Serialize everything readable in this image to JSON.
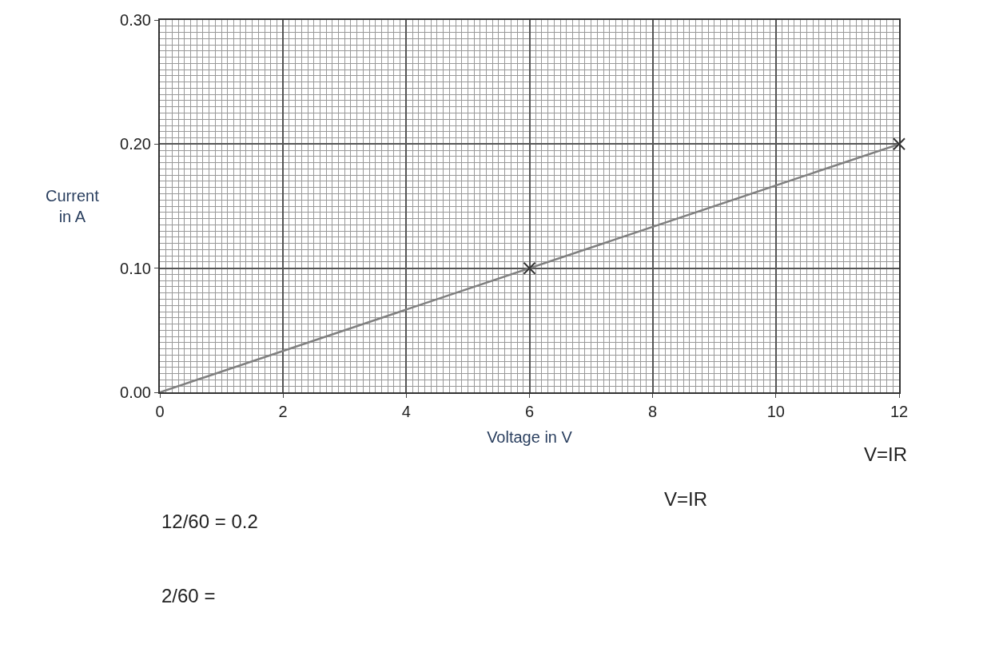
{
  "chart_data": {
    "type": "line",
    "xlabel": "Voltage in V",
    "ylabel": "Current\nin A",
    "xlim": [
      0,
      12
    ],
    "ylim": [
      0,
      0.3
    ],
    "xticks": [
      0,
      2,
      4,
      6,
      8,
      10,
      12
    ],
    "yticks": [
      {
        "value": 0,
        "label": "0.00"
      },
      {
        "value": 0.1,
        "label": "0.10"
      },
      {
        "value": 0.2,
        "label": "0.20"
      },
      {
        "value": 0.3,
        "label": "0.30"
      }
    ],
    "grid": true,
    "legend": false,
    "series": [
      {
        "color": "#808080",
        "x": [
          0,
          12
        ],
        "values": [
          0,
          0.2
        ],
        "marker": "none",
        "line_style": "solid"
      },
      {
        "type": "scatter",
        "color": "#333333",
        "x": [
          6,
          12
        ],
        "values": [
          0.1,
          0.2
        ],
        "marker": "cross"
      }
    ],
    "annotations": [
      "12/60 = 0.2",
      "2/60 =",
      "V=IR",
      "V=IR"
    ]
  }
}
